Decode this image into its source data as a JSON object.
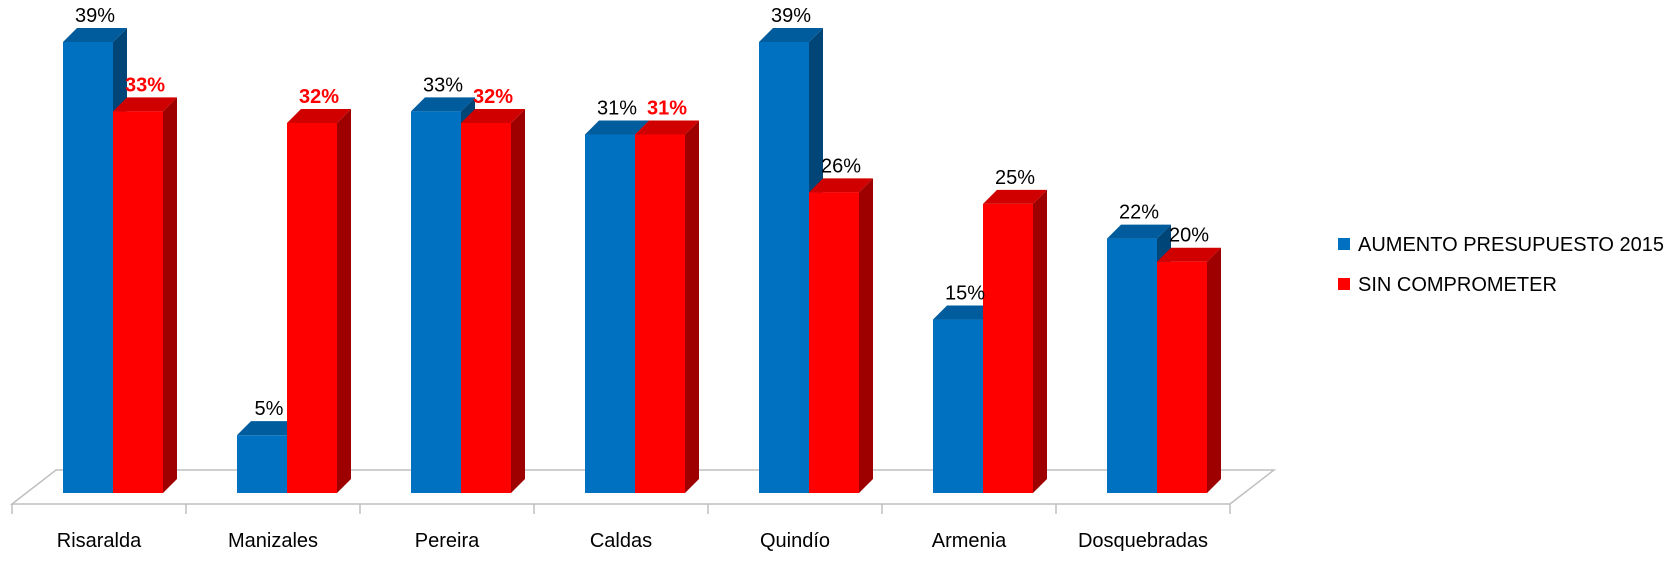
{
  "chart_data": {
    "type": "bar",
    "categories": [
      "Risaralda",
      "Manizales",
      "Pereira",
      "Caldas",
      "Quindío",
      "Armenia",
      "Dosquebradas"
    ],
    "series": [
      {
        "name": "AUMENTO PRESUPUESTO 2015",
        "values": [
          39,
          5,
          33,
          31,
          39,
          15,
          22
        ],
        "labels": [
          "39%",
          "5%",
          "33%",
          "31%",
          "39%",
          "15%",
          "22%"
        ],
        "color": "#0070c0",
        "label_color": "#000000",
        "label_bold": false
      },
      {
        "name": "SIN COMPROMETER",
        "values": [
          33,
          32,
          32,
          31,
          26,
          25,
          20
        ],
        "labels": [
          "33%",
          "32%",
          "32%",
          "31%",
          "26%",
          "25%",
          "20%"
        ],
        "color": "#ff0000",
        "label_color_by_point": [
          "#ff0000",
          "#ff0000",
          "#ff0000",
          "#ff0000",
          "#000000",
          "#000000",
          "#000000"
        ],
        "label_bold_by_point": [
          true,
          true,
          true,
          true,
          false,
          false,
          false
        ]
      }
    ],
    "ylim": [
      0,
      39
    ],
    "grid": false,
    "legend_position": "right",
    "three_d": true
  },
  "legend": {
    "items": [
      {
        "label": "AUMENTO PRESUPUESTO 2015",
        "color": "#0070c0"
      },
      {
        "label": "SIN COMPROMETER",
        "color": "#ff0000"
      }
    ]
  }
}
